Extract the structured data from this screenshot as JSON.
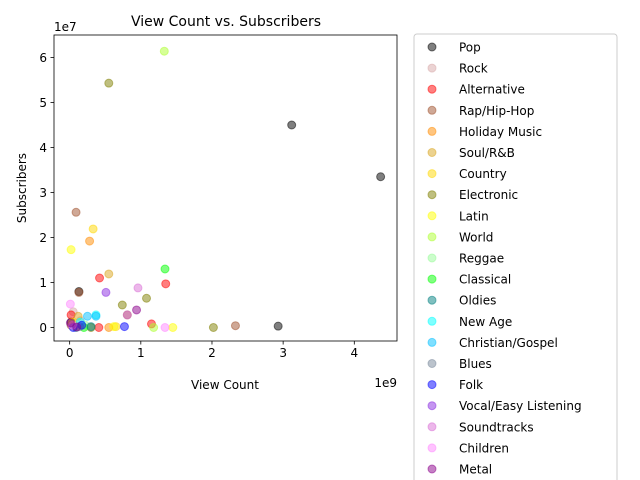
{
  "chart_data": {
    "type": "scatter",
    "title": "View Count vs. Subscribers",
    "xlabel": "View Count",
    "ylabel": "Subscribers",
    "x_scale_label": "1e9",
    "y_scale_label": "1e7",
    "xlim": [
      -0.22,
      4.6
    ],
    "ylim": [
      -0.3,
      6.5
    ],
    "x_ticks": [
      0,
      1,
      2,
      3,
      4
    ],
    "x_tick_labels": [
      "0",
      "1",
      "2",
      "3",
      "4"
    ],
    "y_ticks": [
      0,
      1,
      2,
      3,
      4,
      5,
      6
    ],
    "y_tick_labels": [
      "0",
      "1",
      "2",
      "3",
      "4",
      "5",
      "6"
    ],
    "grid": false,
    "legend_position": "outside-right",
    "point_alpha": 0.5,
    "series": [
      {
        "name": "Pop",
        "color": "#000000",
        "points": [
          [
            3.12,
            4.5
          ],
          [
            4.37,
            3.35
          ],
          [
            2.93,
            0.03
          ],
          [
            0.13,
            0.8
          ],
          [
            0.02,
            0.12
          ]
        ]
      },
      {
        "name": "Rock",
        "color": "#d8a8a8",
        "points": [
          [
            0.15,
            0.15
          ],
          [
            0.05,
            0.35
          ]
        ]
      },
      {
        "name": "Alternative",
        "color": "#ff0000",
        "points": [
          [
            0.42,
            1.1
          ],
          [
            1.35,
            0.97
          ],
          [
            1.15,
            0.08
          ],
          [
            0.41,
            0.0
          ],
          [
            0.02,
            0.28
          ]
        ]
      },
      {
        "name": "Rap/Hip-Hop",
        "color": "#a0522d",
        "points": [
          [
            0.09,
            2.56
          ],
          [
            0.13,
            0.78
          ],
          [
            2.33,
            0.04
          ],
          [
            0.81,
            0.28
          ],
          [
            0.02,
            0.05
          ]
        ]
      },
      {
        "name": "Holiday Music",
        "color": "#ff8c00",
        "points": [
          [
            0.28,
            1.92
          ],
          [
            0.55,
            0.0
          ]
        ]
      },
      {
        "name": "Soul/R&B",
        "color": "#daa520",
        "points": [
          [
            0.55,
            1.19
          ],
          [
            0.12,
            0.25
          ]
        ]
      },
      {
        "name": "Country",
        "color": "#ffd700",
        "points": [
          [
            0.33,
            2.19
          ],
          [
            0.65,
            0.02
          ],
          [
            0.04,
            0.12
          ]
        ]
      },
      {
        "name": "Electronic",
        "color": "#808000",
        "points": [
          [
            0.55,
            5.43
          ],
          [
            0.74,
            0.5
          ],
          [
            1.08,
            0.65
          ],
          [
            2.02,
            0.0
          ],
          [
            0.3,
            0.0
          ]
        ]
      },
      {
        "name": "Latin",
        "color": "#ffff00",
        "points": [
          [
            0.02,
            1.73
          ],
          [
            1.45,
            0.0
          ],
          [
            0.62,
            0.02
          ]
        ]
      },
      {
        "name": "World",
        "color": "#adff2f",
        "points": [
          [
            1.33,
            6.14
          ],
          [
            1.18,
            0.0
          ]
        ]
      },
      {
        "name": "Reggae",
        "color": "#98fb98",
        "points": [
          [
            0.22,
            0.05
          ]
        ]
      },
      {
        "name": "Classical",
        "color": "#00ff00",
        "points": [
          [
            1.34,
            1.3
          ],
          [
            0.2,
            0.0
          ]
        ]
      },
      {
        "name": "Oldies",
        "color": "#008080",
        "points": [
          [
            0.3,
            0.02
          ],
          [
            0.09,
            0.0
          ]
        ]
      },
      {
        "name": "New Age",
        "color": "#00ffff",
        "points": [
          [
            0.37,
            0.28
          ],
          [
            0.15,
            0.12
          ]
        ]
      },
      {
        "name": "Christian/Gospel",
        "color": "#00bfff",
        "points": [
          [
            0.37,
            0.25
          ],
          [
            0.25,
            0.25
          ]
        ]
      },
      {
        "name": "Blues",
        "color": "#778899",
        "points": [
          [
            0.14,
            0.02
          ]
        ]
      },
      {
        "name": "Folk",
        "color": "#0000ff",
        "points": [
          [
            0.77,
            0.02
          ],
          [
            0.17,
            0.05
          ],
          [
            0.05,
            0.0
          ]
        ]
      },
      {
        "name": "Vocal/Easy Listening",
        "color": "#8a2be2",
        "points": [
          [
            0.51,
            0.78
          ]
        ]
      },
      {
        "name": "Soundtracks",
        "color": "#da70d6",
        "points": [
          [
            0.96,
            0.88
          ],
          [
            0.81,
            0.28
          ]
        ]
      },
      {
        "name": "Children",
        "color": "#ff88ff",
        "points": [
          [
            0.01,
            0.52
          ],
          [
            1.34,
            0.0
          ],
          [
            0.04,
            0.05
          ]
        ]
      },
      {
        "name": "Metal",
        "color": "#8b008b",
        "points": [
          [
            0.94,
            0.39
          ],
          [
            0.01,
            0.1
          ],
          [
            0.1,
            0.01
          ]
        ]
      }
    ]
  }
}
